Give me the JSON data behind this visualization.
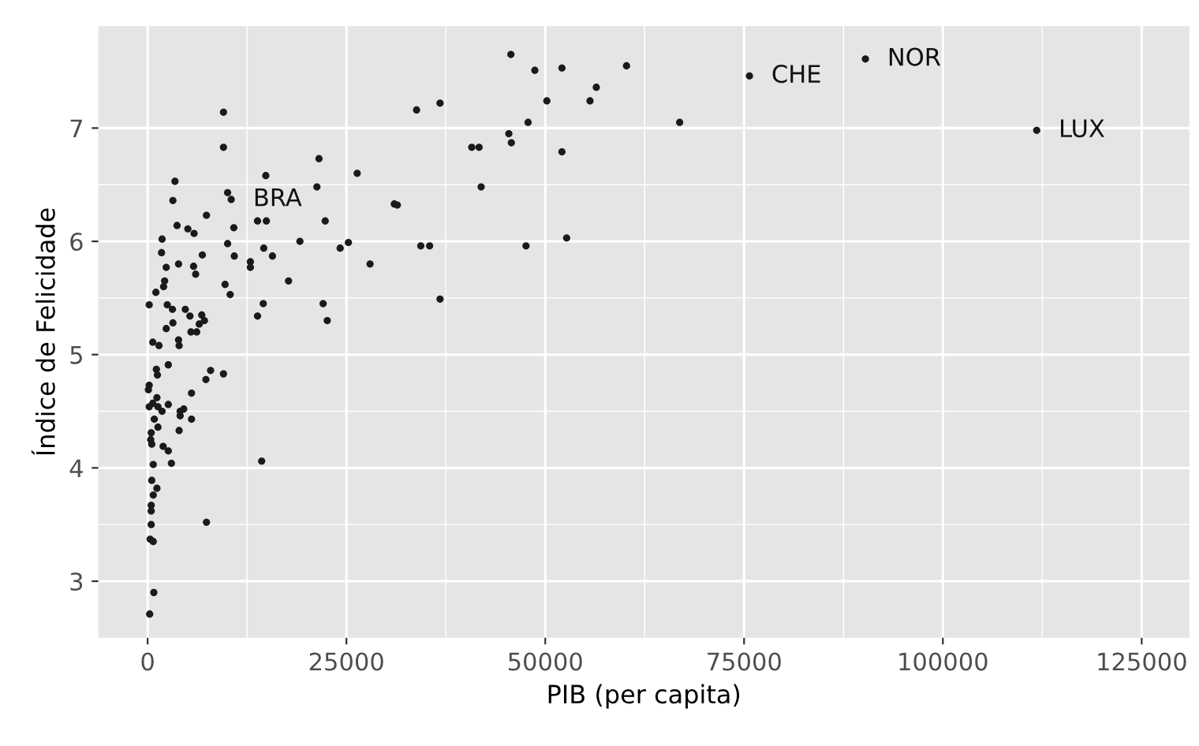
{
  "chart_data": {
    "type": "scatter",
    "xlabel": "PIB (per capita)",
    "ylabel": "Índice de Felicidade",
    "xlim": [
      -6200,
      131000
    ],
    "ylim": [
      2.5,
      7.9
    ],
    "xticks": [
      0,
      25000,
      50000,
      75000,
      100000,
      125000
    ],
    "yticks": [
      3,
      4,
      5,
      6,
      7
    ],
    "grid": true,
    "marker": "circle",
    "series": [
      {
        "color": "#1a1a1a",
        "x": [
          9540,
          9540,
          3440,
          3180,
          10060,
          10510,
          21550,
          21290,
          26350,
          31020,
          14860,
          13820,
          14930,
          22330,
          7400,
          3700,
          5060,
          5840,
          10840,
          1820,
          10060,
          19150,
          14600,
          24210,
          25250,
          1750,
          6880,
          10900,
          15700,
          12920,
          12920,
          27970,
          2340,
          3890,
          5780,
          6040,
          17720,
          2140,
          2010,
          1040,
          9740,
          10380,
          200,
          2470,
          3120,
          4740,
          5320,
          6810,
          7140,
          3180,
          6490,
          2340,
          5450,
          6170,
          3890,
          3960,
          650,
          1430,
          14540,
          13820,
          22070,
          22590,
          2600,
          1100,
          1230,
          7920,
          7330,
          9540,
          200,
          100,
          1170,
          650,
          200,
          1300,
          1820,
          2600,
          5520,
          4090,
          4540,
          4090,
          3960,
          5520,
          840,
          1300,
          450,
          390,
          520,
          1950,
          2600,
          2990,
          710,
          520,
          1170,
          710,
          450,
          450,
          450,
          320,
          710,
          7400,
          14340,
          780,
          260,
          45680,
          48690,
          52100,
          60220,
          75680,
          56420,
          55630,
          50200,
          33820,
          36770,
          47840,
          66900,
          45420,
          45740,
          40760,
          41680,
          52100,
          41940,
          31400,
          34350,
          35460,
          47580,
          52690,
          36770,
          90260,
          111800
        ],
        "values": [
          7.14,
          6.83,
          6.53,
          6.36,
          6.43,
          6.37,
          6.73,
          6.48,
          6.6,
          6.33,
          6.58,
          6.18,
          6.18,
          6.18,
          6.23,
          6.14,
          6.11,
          6.07,
          6.12,
          6.02,
          5.98,
          6.0,
          5.94,
          5.94,
          5.99,
          5.9,
          5.88,
          5.87,
          5.87,
          5.82,
          5.77,
          5.8,
          5.77,
          5.8,
          5.78,
          5.71,
          5.65,
          5.65,
          5.6,
          5.55,
          5.62,
          5.53,
          5.44,
          5.44,
          5.4,
          5.4,
          5.34,
          5.35,
          5.3,
          5.28,
          5.27,
          5.23,
          5.2,
          5.2,
          5.13,
          5.08,
          5.11,
          5.08,
          5.45,
          5.34,
          5.45,
          5.3,
          4.91,
          4.87,
          4.82,
          4.86,
          4.78,
          4.83,
          4.73,
          4.69,
          4.62,
          4.57,
          4.54,
          4.54,
          4.5,
          4.56,
          4.66,
          4.5,
          4.52,
          4.46,
          4.33,
          4.43,
          4.43,
          4.36,
          4.31,
          4.25,
          4.21,
          4.19,
          4.15,
          4.04,
          4.03,
          3.89,
          3.82,
          3.76,
          3.67,
          3.62,
          3.5,
          3.37,
          3.35,
          3.52,
          4.06,
          2.9,
          2.71,
          7.65,
          7.51,
          7.53,
          7.55,
          7.46,
          7.36,
          7.24,
          7.24,
          7.16,
          7.22,
          7.05,
          7.05,
          6.95,
          6.87,
          6.83,
          6.83,
          6.79,
          6.48,
          6.32,
          5.96,
          5.96,
          5.96,
          6.03,
          5.49,
          7.61,
          6.98
        ]
      }
    ],
    "annotations": [
      {
        "text": "BRA",
        "x": 10510,
        "y": 6.37
      },
      {
        "text": "CHE",
        "x": 75680,
        "y": 7.46
      },
      {
        "text": "NOR",
        "x": 90260,
        "y": 7.61
      },
      {
        "text": "LUX",
        "x": 111800,
        "y": 6.98
      }
    ]
  }
}
